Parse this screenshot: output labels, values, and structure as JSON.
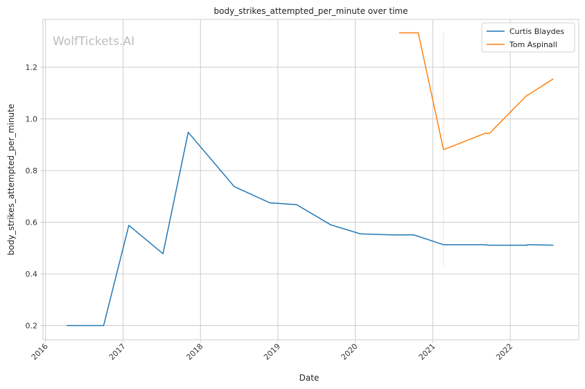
{
  "chart_data": {
    "type": "line",
    "title": "body_strikes_attempted_per_minute over time",
    "xlabel": "Date",
    "ylabel": "body_strikes_attempted_per_minute",
    "watermark": "WolfTickets.AI",
    "x_axis_kind": "date",
    "xlim": [
      "2015-12-20",
      "2022-11-20"
    ],
    "ylim": [
      0.145,
      1.385
    ],
    "x_ticks": [
      "2016",
      "2017",
      "2018",
      "2019",
      "2020",
      "2021",
      "2022"
    ],
    "y_ticks": [
      0.2,
      0.4,
      0.6,
      0.8,
      1.0,
      1.2
    ],
    "grid": true,
    "legend_position": "top-right",
    "series": [
      {
        "name": "Curtis Blaydes",
        "color": "#1f77b4",
        "points": [
          {
            "x": "2016-04-10",
            "y": 0.2
          },
          {
            "x": "2016-06-25",
            "y": 0.2
          },
          {
            "x": "2016-10-01",
            "y": 0.2
          },
          {
            "x": "2017-01-28",
            "y": 0.588
          },
          {
            "x": "2017-07-08",
            "y": 0.478
          },
          {
            "x": "2017-11-04",
            "y": 0.948
          },
          {
            "x": "2018-06-09",
            "y": 0.738
          },
          {
            "x": "2018-11-24",
            "y": 0.675
          },
          {
            "x": "2019-03-30",
            "y": 0.668
          },
          {
            "x": "2019-09-07",
            "y": 0.59
          },
          {
            "x": "2020-01-25",
            "y": 0.555
          },
          {
            "x": "2020-06-20",
            "y": 0.551
          },
          {
            "x": "2020-10-03",
            "y": 0.551
          },
          {
            "x": "2021-02-20",
            "y": 0.513
          },
          {
            "x": "2021-08-28",
            "y": 0.513
          },
          {
            "x": "2021-09-25",
            "y": 0.511
          },
          {
            "x": "2022-03-19",
            "y": 0.511
          },
          {
            "x": "2022-03-26",
            "y": 0.513
          },
          {
            "x": "2022-07-23",
            "y": 0.511
          }
        ]
      },
      {
        "name": "Tom Aspinall",
        "color": "#ff7f0e",
        "points": [
          {
            "x": "2020-07-25",
            "y": 1.333
          },
          {
            "x": "2020-09-05",
            "y": 1.333
          },
          {
            "x": "2020-10-24",
            "y": 1.333
          },
          {
            "x": "2021-02-20",
            "y": 0.881
          },
          {
            "x": "2021-09-04",
            "y": 0.944
          },
          {
            "x": "2021-09-25",
            "y": 0.944
          },
          {
            "x": "2022-03-19",
            "y": 1.09
          },
          {
            "x": "2022-03-26",
            "y": 1.093
          },
          {
            "x": "2022-07-23",
            "y": 1.155
          }
        ],
        "range_band": {
          "x": "2021-02-20",
          "ymin": 0.43,
          "ymax": 1.333
        }
      }
    ]
  }
}
